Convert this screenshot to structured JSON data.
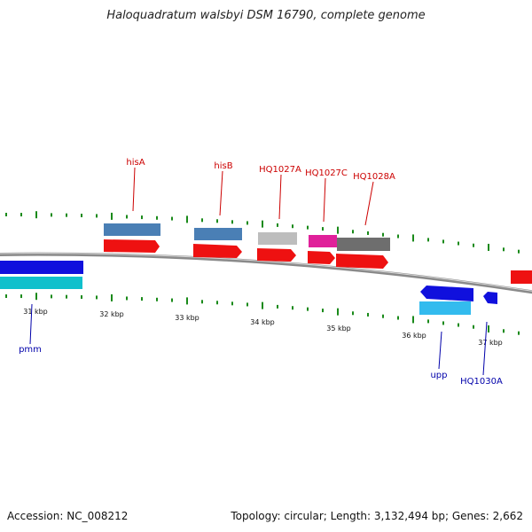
{
  "title": "Haloquadratum walsbyi DSM 16790, complete genome",
  "accession": "Accession: NC_008212",
  "stats": "Topology: circular; Length: 3,132,494 bp; Genes: 2,662",
  "colors": {
    "backbone": "#8a8a8a",
    "tick": "#1a8a1a",
    "top_label": "#cc0000",
    "bottom_label": "#0000aa",
    "cds_red": "#ee1111",
    "steelblue": "#4a7fb5",
    "lightgray": "#bdbdbd",
    "magenta": "#e0209a",
    "darkgray": "#6e6e6e",
    "blue": "#1010dd",
    "cyan": "#10c0cc",
    "lightblue": "#33bbee"
  },
  "kbp_labels": [
    "31 kbp",
    "32 kbp",
    "33 kbp",
    "34 kbp",
    "35 kbp",
    "36 kbp",
    "37 kbp"
  ],
  "genes_top": [
    {
      "label": "hisA"
    },
    {
      "label": "hisB"
    },
    {
      "label": "HQ1027A"
    },
    {
      "label": "HQ1027C"
    },
    {
      "label": "HQ1028A"
    }
  ],
  "genes_bottom": [
    {
      "label": "pmm"
    },
    {
      "label": "upp"
    },
    {
      "label": "HQ1030A"
    }
  ]
}
